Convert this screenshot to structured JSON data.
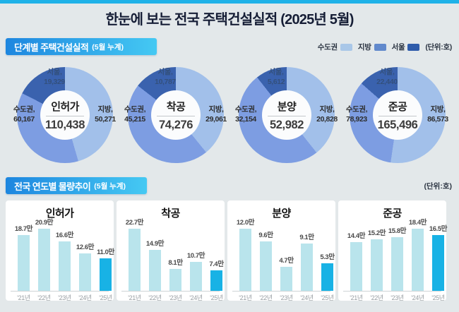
{
  "page": {
    "title": "한눈에 보는 전국 주택건설실적 (2025년 5월)"
  },
  "section1": {
    "badge_title": "단계별 주택건설실적",
    "badge_sub": "(5월 누계)",
    "unit": "(단위:호)",
    "legend": [
      {
        "label": "수도권",
        "color": "#a9c7e8"
      },
      {
        "label": "지방",
        "color": "#6189cc"
      },
      {
        "label": "서울",
        "color": "#2f5cab"
      }
    ]
  },
  "section2": {
    "badge_title": "전국 연도별 물량추이",
    "badge_sub": "(5월 누계)",
    "unit": "(단위:호)"
  },
  "colors": {
    "donut_light": "#a2c0ea",
    "donut_mid": "#7d9de2",
    "donut_dark": "#3a62ae",
    "bar_normal": "#b9e4ec",
    "bar_highlight": "#18b2e5"
  },
  "chart_data": {
    "donuts": {
      "type": "donut",
      "unit": "호",
      "note": "전국 = 수도권 + 지방; 서울은 수도권에 포함. 링 순서(시계방향, 12시 기준): 지방(연한 파랑), 수도권 중 서울 외(중간 파랑), 서울(진한 파랑)",
      "items": [
        {
          "name": "인허가",
          "total": 110438,
          "total_label": "110,438",
          "sudogwon": {
            "label": "수도권,",
            "value": 60167,
            "text": "60,167"
          },
          "jibang": {
            "label": "지방,",
            "value": 50271,
            "text": "50,271"
          },
          "seoul": {
            "label": "서울,",
            "value": 19329,
            "text": "19,329"
          }
        },
        {
          "name": "착공",
          "total": 74276,
          "total_label": "74,276",
          "sudogwon": {
            "label": "수도권,",
            "value": 45215,
            "text": "45,215"
          },
          "jibang": {
            "label": "지방,",
            "value": 29061,
            "text": "29,061"
          },
          "seoul": {
            "label": "서울,",
            "value": 10787,
            "text": "10,787"
          }
        },
        {
          "name": "분양",
          "total": 52982,
          "total_label": "52,982",
          "sudogwon": {
            "label": "수도권,",
            "value": 32154,
            "text": "32,154"
          },
          "jibang": {
            "label": "지방,",
            "value": 20828,
            "text": "20,828"
          },
          "seoul": {
            "label": "서울,",
            "value": 5612,
            "text": "5,612"
          }
        },
        {
          "name": "준공",
          "total": 165496,
          "total_label": "165,496",
          "sudogwon": {
            "label": "수도권,",
            "value": 78923,
            "text": "78,923"
          },
          "jibang": {
            "label": "지방,",
            "value": 86573,
            "text": "86,573"
          },
          "seoul": {
            "label": "서울,",
            "value": 22440,
            "text": "22,440"
          }
        }
      ]
    },
    "bars": {
      "type": "bar",
      "unit": "만 호",
      "categories": [
        "'21년",
        "'22년",
        "'23년",
        "'24년",
        "'25년"
      ],
      "highlight_index": 4,
      "items": [
        {
          "title": "인허가",
          "values": [
            18.7,
            20.9,
            16.6,
            12.6,
            11.0
          ],
          "labels": [
            "18.7만",
            "20.9만",
            "16.6만",
            "12.6만",
            "11.0만"
          ]
        },
        {
          "title": "착공",
          "values": [
            22.7,
            14.9,
            8.1,
            10.7,
            7.4
          ],
          "labels": [
            "22.7만",
            "14.9만",
            "8.1만",
            "10.7만",
            "7.4만"
          ]
        },
        {
          "title": "분양",
          "values": [
            12.0,
            9.6,
            4.7,
            9.1,
            5.3
          ],
          "labels": [
            "12.0만",
            "9.6만",
            "4.7만",
            "9.1만",
            "5.3만"
          ]
        },
        {
          "title": "준공",
          "values": [
            14.4,
            15.2,
            15.8,
            18.4,
            16.5
          ],
          "labels": [
            "14.4만",
            "15.2만",
            "15.8만",
            "18.4만",
            "16.5만"
          ]
        }
      ]
    }
  }
}
